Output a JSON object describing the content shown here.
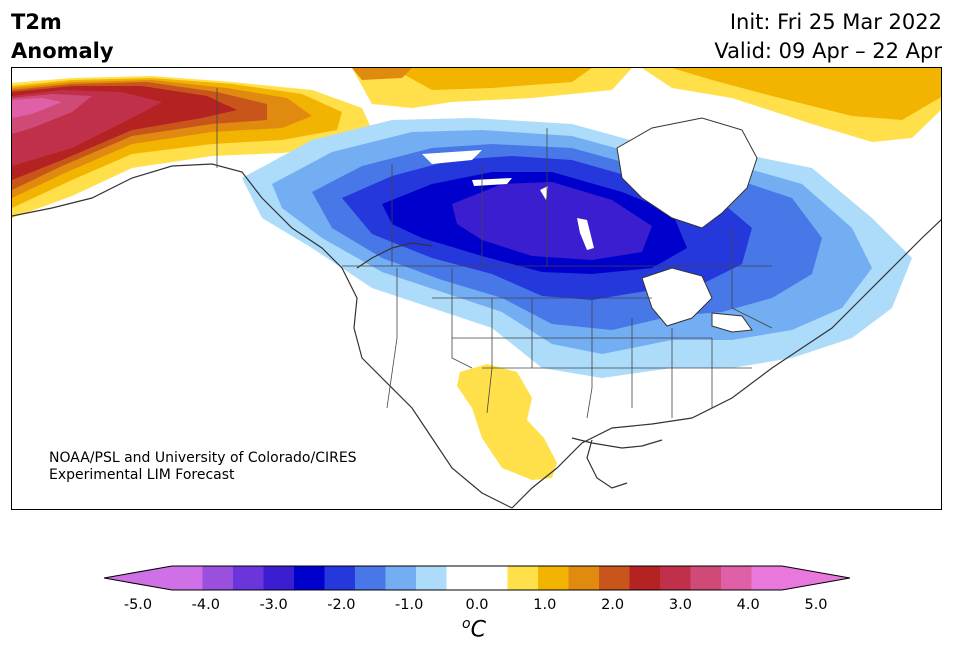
{
  "title": {
    "left_line1": "T2m",
    "left_line2": "Anomaly",
    "right_line1": "Init: Fri 25 Mar 2022",
    "right_line2": "Valid: 09 Apr – 22 Apr"
  },
  "credit": {
    "line1": "NOAA/PSL and University of Colorado/CIRES",
    "line2": "Experimental LIM Forecast"
  },
  "colorbar": {
    "ticks": [
      "-5.0",
      "-4.0",
      "-3.0",
      "-2.0",
      "-1.0",
      "0.0",
      "1.0",
      "2.0",
      "3.0",
      "4.0",
      "5.0"
    ],
    "units_super": "o",
    "units": "C",
    "colors": [
      "#d070e6",
      "#9a50dc",
      "#6a36dc",
      "#3a1ed0",
      "#0000cc",
      "#2438dc",
      "#4878e8",
      "#74aef2",
      "#acdcfa",
      "#ffffff",
      "#ffffff",
      "#ffe04a",
      "#f2b400",
      "#e08a10",
      "#c8561a",
      "#b42222",
      "#c0304a",
      "#d04a78",
      "#e060a8",
      "#e878dc"
    ]
  }
}
